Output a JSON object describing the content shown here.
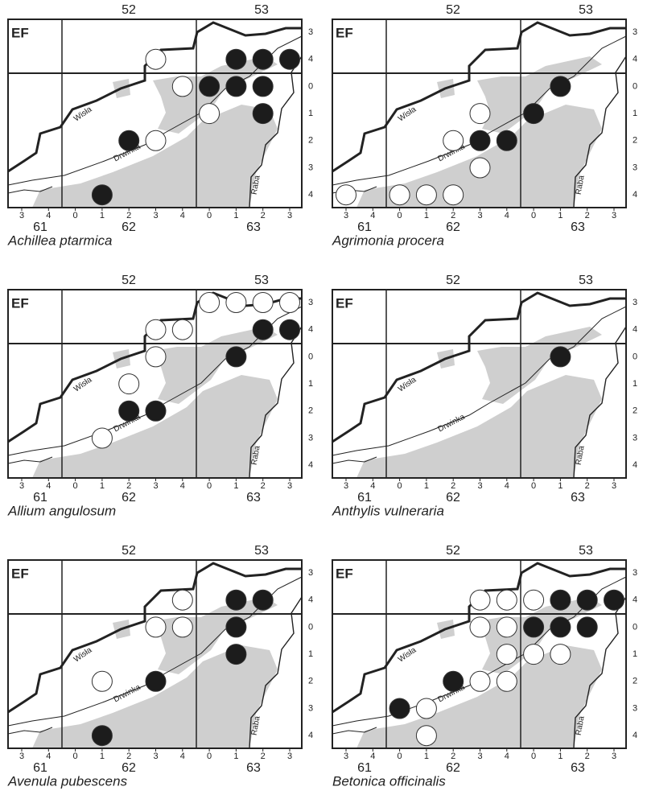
{
  "grid": {
    "corner": "EF",
    "top": [
      "52",
      "53"
    ],
    "squares": [
      "61",
      "62",
      "63"
    ],
    "rows": [
      "3",
      "4",
      "0",
      "1",
      "2",
      "3",
      "4"
    ],
    "cols": [
      "3",
      "4",
      "0",
      "1",
      "2",
      "3",
      "4",
      "0",
      "1",
      "2",
      "3"
    ],
    "rivers": [
      "Wisła",
      "Drwinka",
      "Raba"
    ]
  },
  "panels": [
    {
      "species": "Achillea ptarmica"
    },
    {
      "species": "Agrimonia procera"
    },
    {
      "species": "Allium angulosum"
    },
    {
      "species": "Anthylis vulneraria"
    },
    {
      "species": "Avenula pubescens"
    },
    {
      "species": "Betonica officinalis"
    }
  ]
}
